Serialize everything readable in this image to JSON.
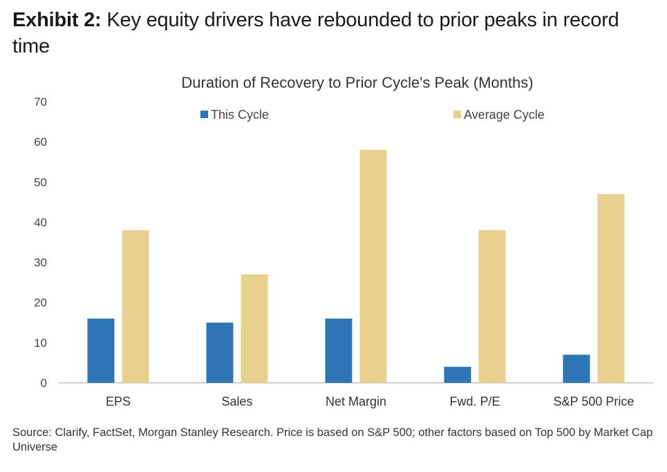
{
  "header": {
    "exhibit_label": "Exhibit 2:",
    "headline": "Key equity drivers have rebounded to prior peaks in record time"
  },
  "chart_data": {
    "type": "bar",
    "title": "Duration of Recovery to Prior Cycle's Peak (Months)",
    "xlabel": "",
    "ylabel": "",
    "categories": [
      "EPS",
      "Sales",
      "Net Margin",
      "Fwd. P/E",
      "S&P 500 Price"
    ],
    "series": [
      {
        "name": "This Cycle",
        "color": "#2e75b6",
        "values": [
          16,
          15,
          16,
          4,
          7
        ]
      },
      {
        "name": "Average Cycle",
        "color": "#e8d08f",
        "values": [
          38,
          27,
          58,
          38,
          47
        ]
      }
    ],
    "ylim": [
      0,
      70
    ],
    "yticks": [
      0,
      10,
      20,
      30,
      40,
      50,
      60,
      70
    ],
    "grid": false,
    "legend_position": "top"
  },
  "footer": {
    "source": "Source: Clarify, FactSet, Morgan Stanley Research. Price is based on S&P 500; other factors based on Top 500 by Market Cap Universe"
  }
}
